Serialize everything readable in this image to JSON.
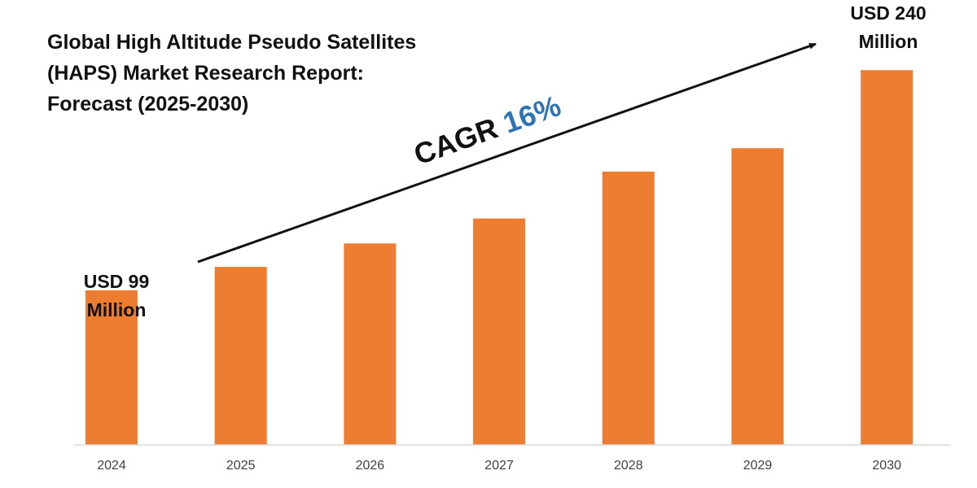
{
  "colors": {
    "bar": "#ED7D31",
    "cagr_value": "#2E75B6",
    "axis": "#D9D9D9",
    "text": "#111111",
    "tick": "#404040"
  },
  "chart_data": {
    "type": "bar",
    "title": {
      "line1": "Global High Altitude Pseudo Satellites",
      "line2": "(HAPS) Market Research Report:",
      "line3": "Forecast (2025-2030)"
    },
    "categories": [
      "2024",
      "2025",
      "2026",
      "2027",
      "2028",
      "2029",
      "2030"
    ],
    "values": [
      99,
      114,
      129,
      145,
      175,
      190,
      240
    ],
    "unit": "USD Million",
    "ylim": [
      0,
      250
    ],
    "grid": false,
    "legend": "none",
    "annotations": {
      "start_label": {
        "line1": "USD 99",
        "line2": "Million"
      },
      "end_label": {
        "line1": "USD 240",
        "line2": "Million"
      },
      "cagr": {
        "prefix": "CAGR ",
        "value": "16%"
      }
    }
  }
}
